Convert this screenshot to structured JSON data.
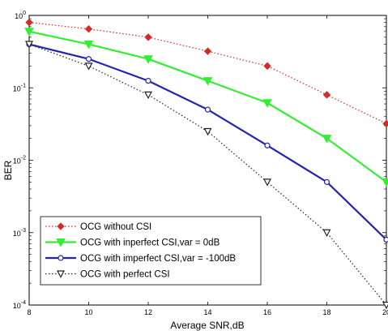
{
  "chart_data": {
    "type": "line",
    "xlabel": "Average SNR,dB",
    "ylabel": "BER",
    "x": [
      8,
      10,
      12,
      14,
      16,
      18,
      20
    ],
    "xlim": [
      8,
      20
    ],
    "ylim": [
      0.0001,
      1
    ],
    "yscale": "log",
    "x_ticks": [
      "8",
      "10",
      "12",
      "14",
      "16",
      "18",
      "20"
    ],
    "y_ticks": [
      {
        "base": "10",
        "exp": "0",
        "value": 1
      },
      {
        "base": "10",
        "exp": "-1",
        "value": 0.1
      },
      {
        "base": "10",
        "exp": "-2",
        "value": 0.01
      },
      {
        "base": "10",
        "exp": "-3",
        "value": 0.001
      },
      {
        "base": "10",
        "exp": "-4",
        "value": 0.0001
      }
    ],
    "grid": false,
    "legend_position": "bottom-left",
    "series": [
      {
        "name": "OCG without CSI",
        "color": "#d62a2a",
        "line": "dotted",
        "marker": "diamond",
        "values": [
          0.8,
          0.65,
          0.5,
          0.32,
          0.2,
          0.08,
          0.032
        ]
      },
      {
        "name": "OCG with inperfect CSI,var = 0dB",
        "color": "#33ee33",
        "line": "solid",
        "marker": "triangle-down",
        "values": [
          0.6,
          0.4,
          0.25,
          0.125,
          0.062,
          0.02,
          0.005
        ]
      },
      {
        "name": "OCG with imperfect CSI,var = -100dB",
        "color": "#2323b0",
        "line": "solid",
        "marker": "circle",
        "values": [
          0.4,
          0.25,
          0.125,
          0.05,
          0.016,
          0.005,
          0.0008
        ]
      },
      {
        "name": "OCG with perfect CSI",
        "color": "#222222",
        "line": "dotted",
        "marker": "triangle-down-open",
        "values": [
          0.4,
          0.2,
          0.08,
          0.025,
          0.005,
          0.001,
          0.0001
        ]
      }
    ]
  }
}
